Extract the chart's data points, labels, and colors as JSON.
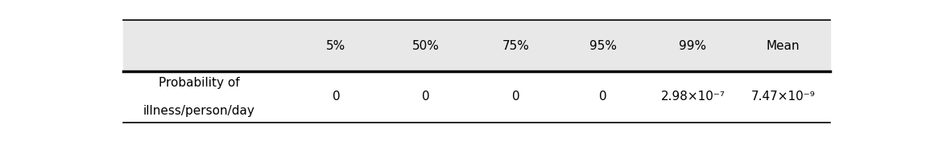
{
  "columns": [
    "",
    "5%",
    "50%",
    "75%",
    "95%",
    "99%",
    "Mean"
  ],
  "row_label_line1": "Probability of",
  "row_label_line2": "illness/person/day",
  "row_values": [
    "0",
    "0",
    "0",
    "0",
    "2.98×10⁻⁷",
    "7.47×10⁻⁹"
  ],
  "header_bg": "#e8e8e8",
  "body_bg": "#ffffff",
  "line_color": "#000000",
  "text_color": "#000000",
  "font_size": 11,
  "header_font_size": 11
}
